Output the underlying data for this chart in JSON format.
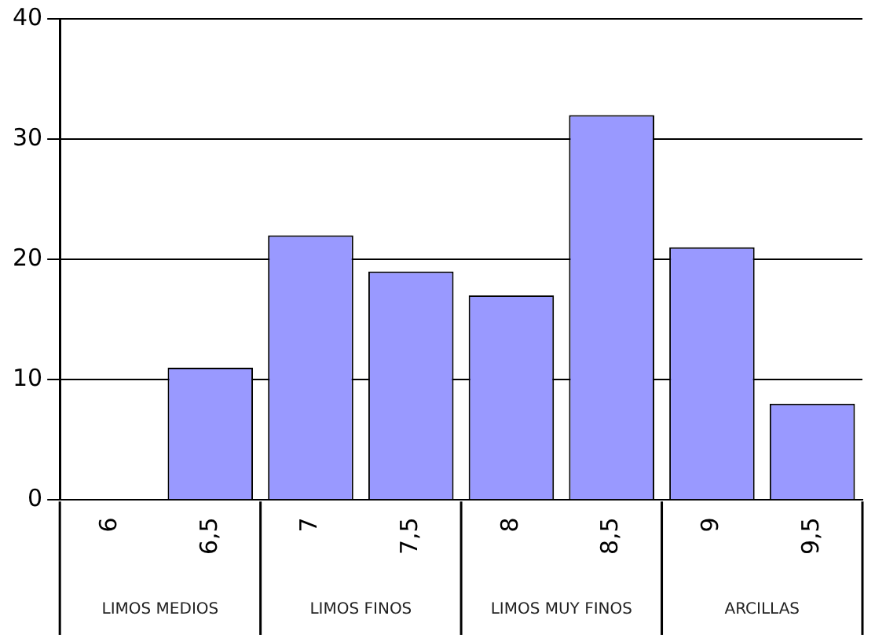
{
  "chart_data": {
    "type": "bar",
    "categories": [
      "6",
      "6,5",
      "7",
      "7,5",
      "8",
      "8,5",
      "9",
      "9,5"
    ],
    "values": [
      0,
      11,
      22,
      19,
      17,
      32,
      21,
      8
    ],
    "color": "#9999ff",
    "ylim": [
      0,
      40
    ],
    "yticks": [
      0,
      10,
      20,
      30,
      40
    ],
    "grid": "y",
    "legend": false,
    "annotations": [
      "LIMOS MEDIOS",
      "LIMOS FINOS",
      "LIMOS MUY FINOS",
      "ARCILLAS"
    ]
  }
}
